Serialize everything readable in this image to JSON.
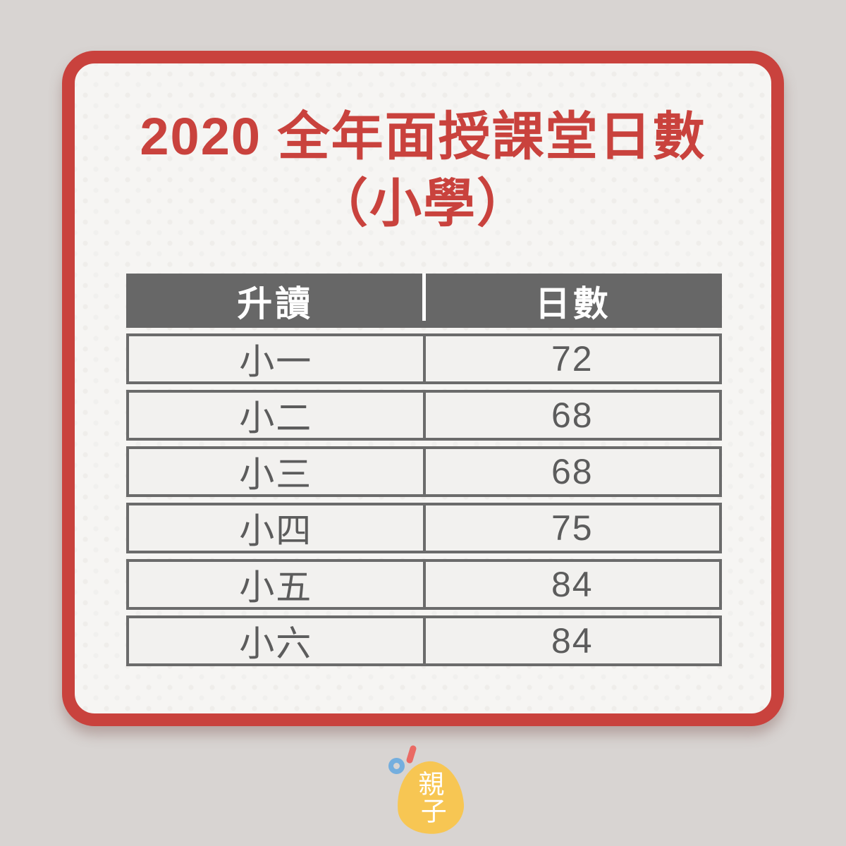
{
  "title": {
    "line1": "2020 全年面授課堂日數",
    "line2": "（小學）"
  },
  "table": {
    "header": {
      "col1": "升讀",
      "col2": "日數"
    },
    "rows": [
      {
        "grade": "小一",
        "days": "72"
      },
      {
        "grade": "小二",
        "days": "68"
      },
      {
        "grade": "小三",
        "days": "68"
      },
      {
        "grade": "小四",
        "days": "75"
      },
      {
        "grade": "小五",
        "days": "84"
      },
      {
        "grade": "小六",
        "days": "84"
      }
    ]
  },
  "logo": {
    "char_top": "親",
    "char_bottom": "子"
  },
  "colors": {
    "page_background": "#d8d4d2",
    "card_background": "#f6f5f3",
    "accent_red": "#c9423d",
    "header_background": "#676767",
    "header_text": "#ffffff",
    "table_border": "#6b6b6b",
    "cell_text": "#5c5c5c",
    "logo_egg_yellow": "#f7c653",
    "logo_ring_blue": "#74aede",
    "logo_stick_red": "#ea6a64"
  },
  "chart_data": {
    "type": "table",
    "title": "2020 全年面授課堂日數（小學）",
    "columns": [
      "升讀",
      "日數"
    ],
    "rows": [
      [
        "小一",
        72
      ],
      [
        "小二",
        68
      ],
      [
        "小三",
        68
      ],
      [
        "小四",
        75
      ],
      [
        "小五",
        84
      ],
      [
        "小六",
        84
      ]
    ]
  }
}
